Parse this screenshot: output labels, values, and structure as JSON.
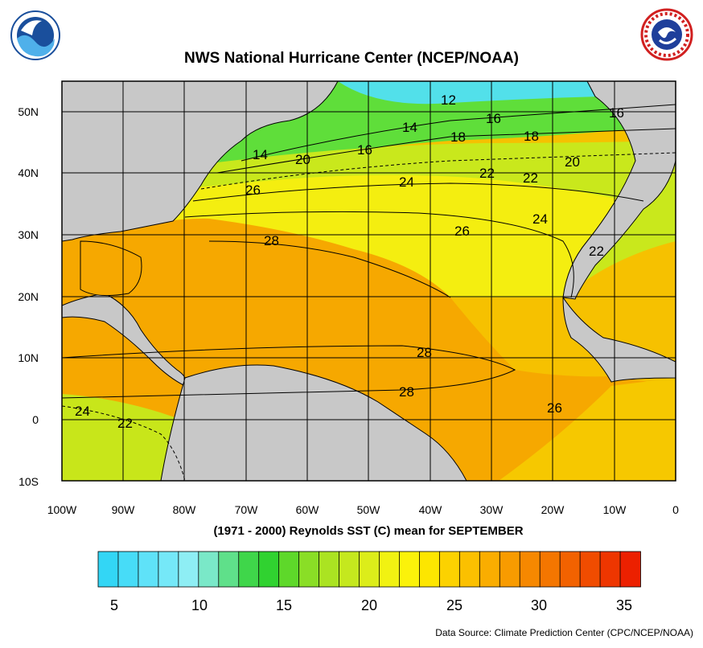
{
  "header": {
    "title": "NWS National Hurricane Center (NCEP/NOAA)",
    "left_logo": "noaa-logo",
    "right_logo": "nws-logo"
  },
  "map": {
    "region": "North Atlantic Ocean",
    "lon_range": [
      -100,
      0
    ],
    "lat_range": [
      -10,
      55
    ],
    "lat_ticks": [
      "50N",
      "40N",
      "30N",
      "20N",
      "10N",
      "0",
      "10S"
    ],
    "lon_ticks": [
      "100W",
      "90W",
      "80W",
      "70W",
      "60W",
      "50W",
      "40W",
      "30W",
      "20W",
      "10W",
      "0"
    ],
    "land_color": "#c8c8c8",
    "contour_labels": [
      "12",
      "16",
      "16",
      "14",
      "18",
      "18",
      "14",
      "20",
      "16",
      "20",
      "22",
      "22",
      "24",
      "26",
      "24",
      "26",
      "28",
      "22",
      "28",
      "28",
      "26",
      "24",
      "22"
    ]
  },
  "subtitle": "(1971 - 2000) Reynolds SST (C) mean for SEPTEMBER",
  "colorbar": {
    "labels": [
      "5",
      "10",
      "15",
      "20",
      "25",
      "30",
      "35"
    ],
    "colors": [
      "#33d6f5",
      "#47dcf7",
      "#5fe2f8",
      "#75e8f8",
      "#8eeef4",
      "#7ae8c8",
      "#5fe08a",
      "#3fd64a",
      "#30d230",
      "#5ed82a",
      "#8ade26",
      "#abe322",
      "#c5e81e",
      "#dced1a",
      "#f1f212",
      "#fbf20a",
      "#fde600",
      "#fcd200",
      "#fbc000",
      "#faad00",
      "#f89b00",
      "#f68800",
      "#f47600",
      "#f26200",
      "#f04c00",
      "#ee3600",
      "#ec2000"
    ]
  },
  "source": "Data Source: Climate Prediction Center (CPC/NCEP/NOAA)"
}
